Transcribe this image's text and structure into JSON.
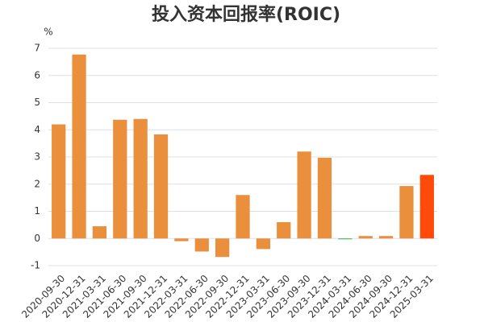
{
  "chart_data": {
    "type": "bar",
    "title": "投入资本回报率(ROIC)",
    "y_unit": "%",
    "categories": [
      "2020-09-30",
      "2020-12-31",
      "2021-03-31",
      "2021-06-30",
      "2021-09-30",
      "2021-12-31",
      "2022-03-31",
      "2022-06-30",
      "2022-09-30",
      "2022-12-31",
      "2023-03-31",
      "2023-06-30",
      "2023-09-30",
      "2023-12-31",
      "2024-03-31",
      "2024-06-30",
      "2024-09-30",
      "2024-12-31",
      "2025-03-31"
    ],
    "values": [
      4.2,
      6.77,
      0.45,
      4.37,
      4.4,
      3.83,
      -0.1,
      -0.48,
      -0.68,
      1.6,
      -0.39,
      0.6,
      3.2,
      2.97,
      -0.03,
      0.09,
      0.09,
      1.93,
      2.34
    ],
    "colors": [
      "#ea8f3c",
      "#ea8f3c",
      "#ea8f3c",
      "#ea8f3c",
      "#ea8f3c",
      "#ea8f3c",
      "#ea8f3c",
      "#ea8f3c",
      "#ea8f3c",
      "#ea8f3c",
      "#ea8f3c",
      "#ea8f3c",
      "#ea8f3c",
      "#ea8f3c",
      "#3cb043",
      "#ea8f3c",
      "#ea8f3c",
      "#ea8f3c",
      "#ff4a0a"
    ],
    "ylim": [
      -1,
      7
    ],
    "yticks": [
      -1,
      0,
      1,
      2,
      3,
      4,
      5,
      6,
      7
    ],
    "grid": true
  }
}
